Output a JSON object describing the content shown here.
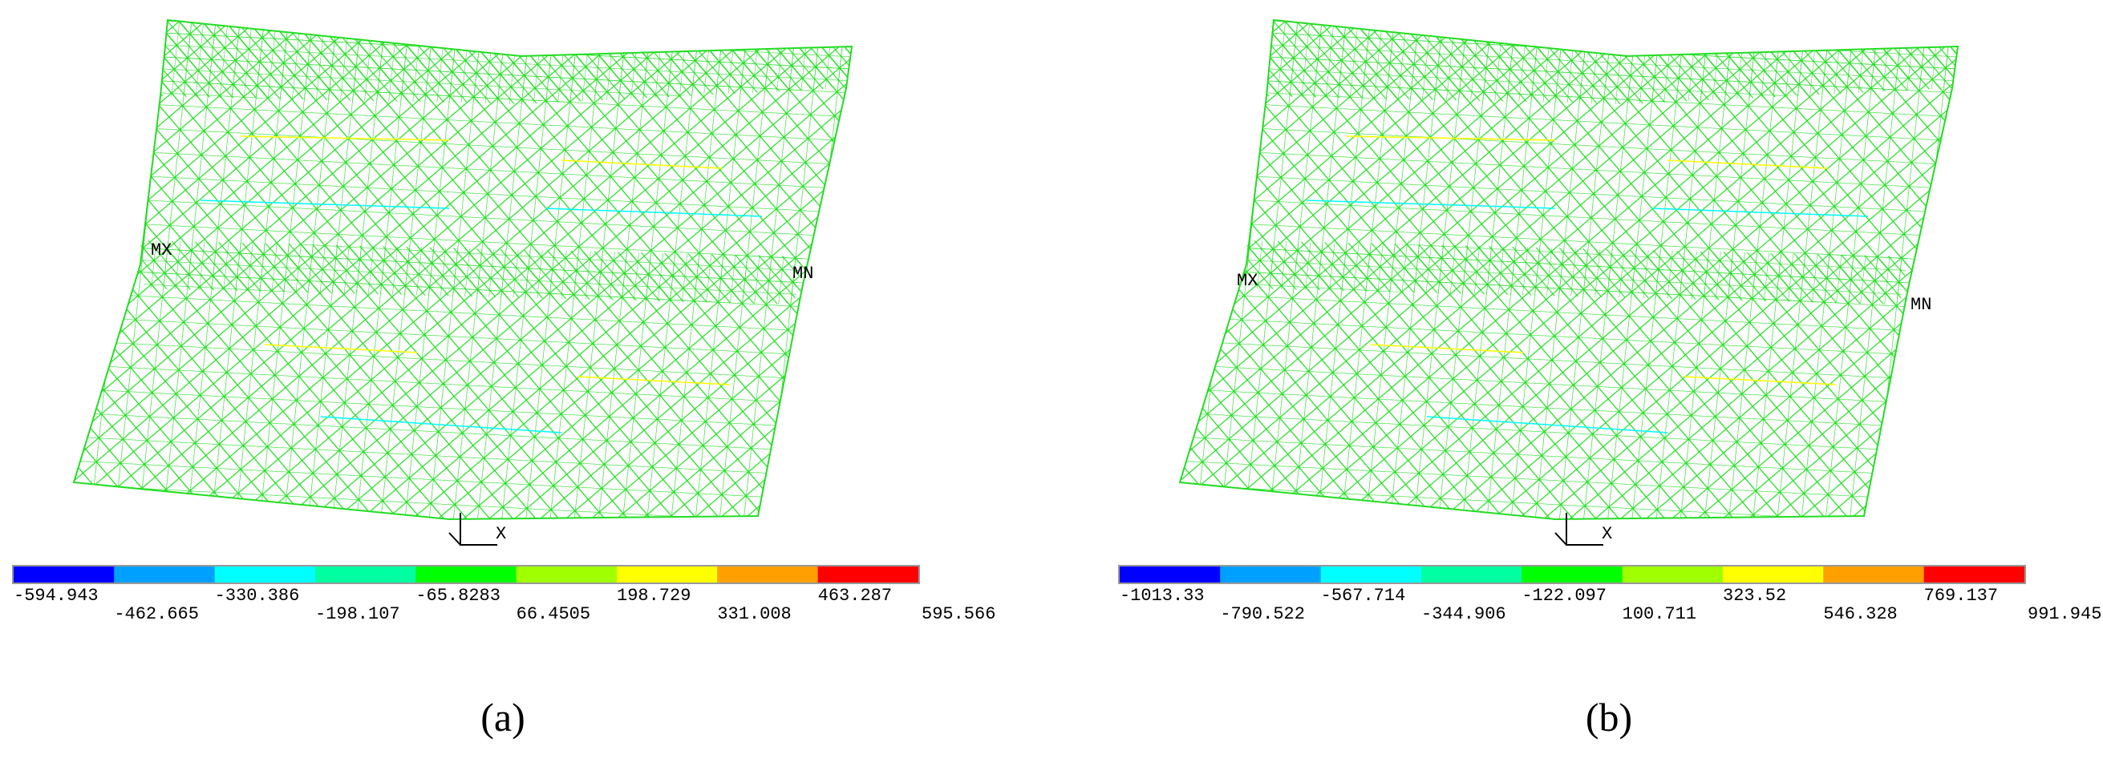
{
  "panels": [
    {
      "caption": "(a)",
      "markers": {
        "max": "MX",
        "min": "MN",
        "axis": "X"
      },
      "legend": {
        "labels": [
          "-594.943",
          "-462.665",
          "-330.386",
          "-198.107",
          "-65.8283",
          "66.4505",
          "198.729",
          "331.008",
          "463.287",
          "595.566"
        ],
        "colors": [
          "#0000ff",
          "#00a0ff",
          "#00ffff",
          "#00ffa0",
          "#00ff00",
          "#a0ff00",
          "#ffff00",
          "#ffa000",
          "#ff0000"
        ]
      }
    },
    {
      "caption": "(b)",
      "markers": {
        "max": "MX",
        "min": "MN",
        "axis": "X"
      },
      "legend": {
        "labels": [
          "-1013.33",
          "-790.522",
          "-567.714",
          "-344.906",
          "-122.097",
          "100.711",
          "323.52",
          "546.328",
          "769.137",
          "991.945"
        ],
        "colors": [
          "#0000ff",
          "#00a0ff",
          "#00ffff",
          "#00ffa0",
          "#00ff00",
          "#a0ff00",
          "#ffff00",
          "#ffa000",
          "#ff0000"
        ]
      }
    }
  ]
}
